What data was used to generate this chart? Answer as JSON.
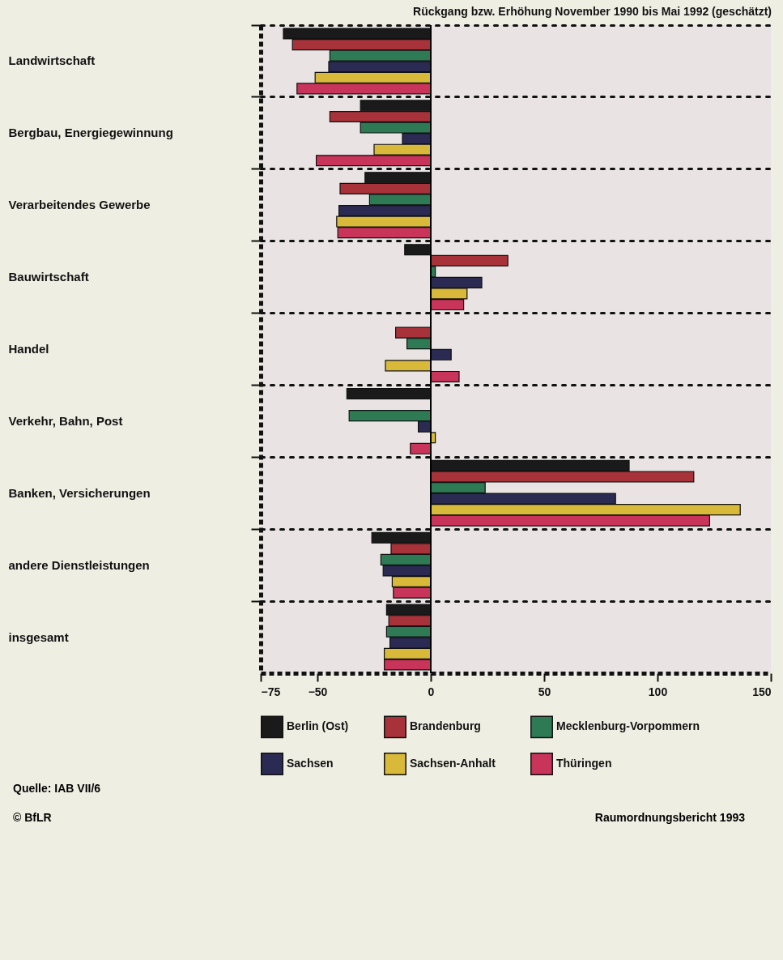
{
  "chart_data": {
    "type": "bar",
    "orientation": "horizontal",
    "title": "Rückgang bzw. Erhöhung November 1990 bis Mai 1992 (geschätzt)",
    "categories": [
      "Landwirtschaft",
      "Bergbau, Energiegewinnung",
      "Verarbeitendes Gewerbe",
      "Bauwirtschaft",
      "Handel",
      "Verkehr, Bahn, Post",
      "Banken, Versicherungen",
      "andere Dienstleistungen",
      "insgesamt"
    ],
    "series": [
      {
        "name": "Berlin (Ost)",
        "color": "#1a1a1a",
        "values": [
          -65,
          -31,
          -29,
          -11.5,
          null,
          -37,
          87.5,
          -26,
          -19.5
        ]
      },
      {
        "name": "Brandenburg",
        "color": "#a8323a",
        "values": [
          -61,
          -44.5,
          -40,
          34,
          -15.5,
          null,
          116,
          -17.5,
          -18.5
        ]
      },
      {
        "name": "Mecklenburg-Vorpommern",
        "color": "#2e7a55",
        "values": [
          -44.5,
          -31,
          -27,
          2,
          -10.5,
          -36,
          24,
          -22,
          -19.5
        ]
      },
      {
        "name": "Sachsen",
        "color": "#2b2a52",
        "values": [
          -45,
          -12.5,
          -40.5,
          22.5,
          9,
          -5.5,
          81.5,
          -21,
          -18
        ]
      },
      {
        "name": "Sachsen-Anhalt",
        "color": "#d9b93a",
        "values": [
          -51,
          -25,
          -41.5,
          16,
          -20,
          2,
          136.5,
          -17,
          -20.5
        ]
      },
      {
        "name": "Thüringen",
        "color": "#c8345a",
        "values": [
          -59,
          -50.5,
          -41,
          14.5,
          12.5,
          -9,
          123,
          -16.5,
          -20.5
        ]
      }
    ],
    "xlim": [
      -75,
      150
    ],
    "xticks": [
      -75,
      -50,
      0,
      50,
      100,
      150
    ],
    "grid": "y",
    "legend": "bottom",
    "ref_lines": [
      {
        "axis": "x",
        "value": 0,
        "color": "#000000"
      }
    ],
    "annotations": [
      "Quelle: IAB VII/6",
      "© BfLR",
      "Raumordnungsbericht 1993"
    ]
  }
}
